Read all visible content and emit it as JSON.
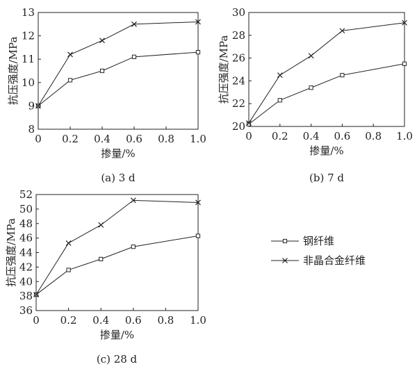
{
  "chart_data": [
    {
      "type": "line",
      "caption": "(a) 3 d",
      "xlabel": "掺量/%",
      "ylabel": "抗压强度/MPa",
      "xlim": [
        0,
        1.0
      ],
      "ylim": [
        8,
        13
      ],
      "xticks": [
        "0",
        "0.2",
        "0.4",
        "0.6",
        "0.8",
        "1.0"
      ],
      "yticks": [
        "8",
        "9",
        "10",
        "11",
        "12",
        "13"
      ],
      "x": [
        0,
        0.2,
        0.4,
        0.6,
        1.0
      ],
      "series": [
        {
          "name": "钢纤维",
          "marker": "square",
          "values": [
            9.0,
            10.1,
            10.5,
            11.1,
            11.3
          ]
        },
        {
          "name": "非晶合金纤维",
          "marker": "x",
          "values": [
            9.0,
            11.2,
            11.8,
            12.5,
            12.6
          ]
        }
      ]
    },
    {
      "type": "line",
      "caption": "(b) 7 d",
      "xlabel": "掺量/%",
      "ylabel": "抗压强度/MPa",
      "xlim": [
        0,
        1.0
      ],
      "ylim": [
        20,
        30
      ],
      "xticks": [
        "0",
        "0.2",
        "0.4",
        "0.6",
        "0.8",
        "1.0"
      ],
      "yticks": [
        "20",
        "22",
        "24",
        "26",
        "28",
        "30"
      ],
      "x": [
        0,
        0.2,
        0.4,
        0.6,
        1.0
      ],
      "series": [
        {
          "name": "钢纤维",
          "marker": "square",
          "values": [
            20.2,
            22.3,
            23.4,
            24.5,
            25.5
          ]
        },
        {
          "name": "非晶合金纤维",
          "marker": "x",
          "values": [
            20.3,
            24.5,
            26.2,
            28.4,
            29.1
          ]
        }
      ]
    },
    {
      "type": "line",
      "caption": "(c) 28 d",
      "xlabel": "掺量/%",
      "ylabel": "抗压强度/MPa",
      "xlim": [
        0,
        1.0
      ],
      "ylim": [
        36,
        52
      ],
      "xticks": [
        "0",
        "0.2",
        "0.4",
        "0.6",
        "0.8",
        "1.0"
      ],
      "yticks": [
        "36",
        "38",
        "40",
        "42",
        "44",
        "46",
        "48",
        "50",
        "52"
      ],
      "x": [
        0,
        0.2,
        0.4,
        0.6,
        1.0
      ],
      "series": [
        {
          "name": "钢纤维",
          "marker": "square",
          "values": [
            38.2,
            41.6,
            43.1,
            44.8,
            46.3
          ]
        },
        {
          "name": "非晶合金纤维",
          "marker": "x",
          "values": [
            38.2,
            45.3,
            47.8,
            51.2,
            50.9
          ]
        }
      ]
    }
  ],
  "legend": {
    "items": [
      {
        "label": "钢纤维",
        "marker": "square"
      },
      {
        "label": "非晶合金纤维",
        "marker": "x"
      }
    ]
  }
}
